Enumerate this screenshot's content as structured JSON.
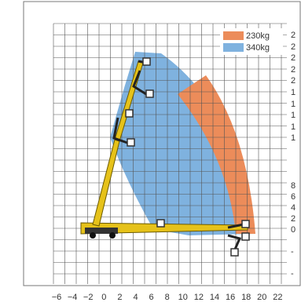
{
  "legend": [
    {
      "label": "230kg",
      "color": "#ec8c5a"
    },
    {
      "label": "340kg",
      "color": "#7fb2df"
    }
  ],
  "x_axis": {
    "labels": [
      "−6",
      "−4",
      "−2",
      "0",
      "2",
      "4",
      "6",
      "8",
      "10",
      "12",
      "14",
      "16",
      "18",
      "20",
      "22"
    ]
  },
  "y_axis": {
    "labels": [
      "2",
      "2",
      "2",
      "2",
      "2",
      "1",
      "1",
      "1",
      "1",
      "1",
      "8",
      "6",
      "4",
      "2",
      "0",
      "-",
      "-"
    ]
  }
}
